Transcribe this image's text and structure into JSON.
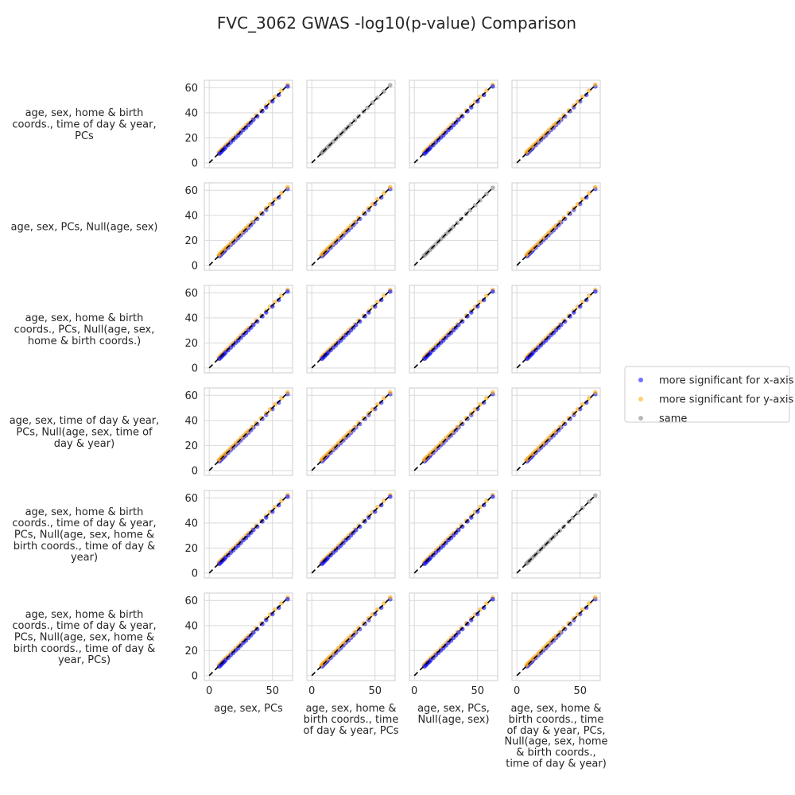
{
  "chart_data": {
    "type": "scatter",
    "title": "FVC_3062 GWAS -log10(p-value) Comparison",
    "x_tick_labels": [
      "0",
      "50"
    ],
    "y_tick_labels": [
      "0",
      "20",
      "40",
      "60"
    ],
    "xlim": [
      -2,
      64
    ],
    "ylim": [
      -2,
      64
    ],
    "grid": true,
    "legend_position": "right",
    "reference_line": {
      "style": "dashed",
      "color": "#000000",
      "x": [
        0,
        62
      ],
      "y": [
        0,
        62
      ]
    },
    "legend": [
      {
        "label": "more significant for x-axis",
        "color": "#0000ff"
      },
      {
        "label": "more significant for y-axis",
        "color": "#ffa500"
      },
      {
        "label": "same",
        "color": "#808080"
      }
    ],
    "row_labels": [
      [
        "age, sex, home & birth",
        "coords., time of day & year,",
        "PCs"
      ],
      [
        "age, sex, PCs, Null(age, sex)"
      ],
      [
        "age, sex, home & birth",
        "coords., PCs, Null(age, sex,",
        "home & birth coords.)"
      ],
      [
        "age, sex, time of day & year,",
        "PCs, Null(age, sex, time of",
        "day & year)"
      ],
      [
        "age, sex, home & birth",
        "coords., time of day & year,",
        "PCs, Null(age, sex, home &",
        "birth coords., time of day &",
        "year)"
      ],
      [
        "age, sex, home & birth",
        "coords., time of day & year,",
        "PCs, Null(age, sex, home &",
        "birth coords., time of day &",
        "year, PCs)"
      ]
    ],
    "column_labels": [
      [
        "age, sex, PCs"
      ],
      [
        "age, sex, home &",
        "birth coords., time",
        "of day & year, PCs"
      ],
      [
        "age, sex, PCs,",
        "Null(age, sex)"
      ],
      [
        "age, sex, home &",
        "birth coords., time",
        "of day & year, PCs,",
        "Null(age, sex, home",
        "& birth coords.,",
        "time of day & year)"
      ]
    ],
    "panels": [
      [
        "x_more",
        "same",
        "x_more",
        "y_more"
      ],
      [
        "y_more",
        "y_more",
        "same",
        "y_more"
      ],
      [
        "x_more",
        "x_more",
        "x_more",
        "x_more"
      ],
      [
        "y_more",
        "y_more",
        "y_more",
        "y_more"
      ],
      [
        "x_more",
        "x_more",
        "x_more",
        "same"
      ],
      [
        "x_more",
        "y_more",
        "x_more",
        "y_more"
      ]
    ],
    "series": [
      {
        "name": "more significant for x-axis",
        "x": [
          8,
          9,
          10,
          11,
          12,
          13,
          15,
          17,
          19,
          21,
          23,
          25,
          27,
          29,
          31,
          33,
          35,
          38,
          42,
          45,
          50,
          55,
          62
        ],
        "y": [
          7.3,
          8.2,
          9.3,
          10.4,
          11.2,
          12.5,
          14.2,
          16.3,
          18.1,
          20.2,
          22.0,
          24.1,
          26.3,
          28.0,
          30.1,
          32.2,
          34.4,
          37.1,
          41.2,
          44.3,
          49.1,
          54.2,
          61.0
        ]
      },
      {
        "name": "more significant for y-axis",
        "x": [
          7.5,
          8.5,
          9.5,
          10.5,
          12,
          13.5,
          15,
          17,
          19,
          21,
          23,
          25,
          27,
          29,
          31,
          34,
          37,
          41,
          45,
          48,
          52,
          57,
          62
        ],
        "y": [
          8.2,
          9.3,
          10.4,
          11.3,
          12.9,
          14.4,
          15.8,
          17.9,
          19.8,
          21.9,
          23.8,
          25.9,
          27.8,
          29.9,
          31.8,
          34.8,
          37.9,
          41.8,
          45.7,
          48.9,
          52.8,
          57.7,
          62.5
        ]
      },
      {
        "name": "same",
        "x": [
          7.5,
          8.5,
          9.5,
          10.5,
          12,
          13.5,
          15,
          17,
          19,
          21,
          23,
          25,
          27,
          29,
          31,
          34,
          37,
          41,
          44,
          48,
          52,
          57,
          62
        ],
        "y": [
          7.5,
          8.5,
          9.5,
          10.5,
          12,
          13.5,
          15,
          17,
          19,
          21,
          23,
          25,
          27,
          29,
          31,
          34,
          37,
          41,
          44,
          48,
          52,
          57,
          62
        ]
      }
    ]
  }
}
